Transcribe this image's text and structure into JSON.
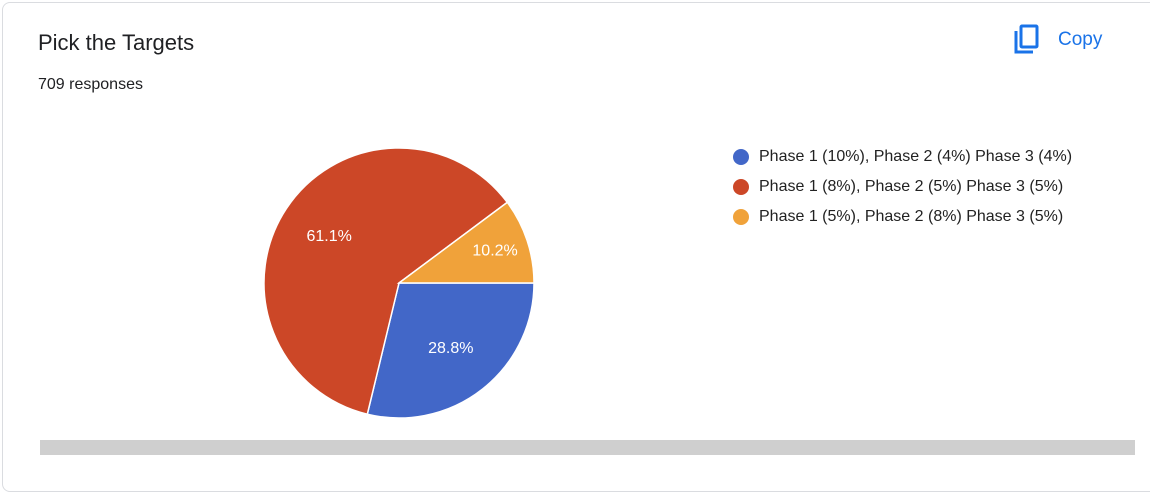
{
  "header": {
    "title": "Pick the Targets",
    "subtitle": "709 responses",
    "action": "Copy"
  },
  "chart_data": {
    "type": "pie",
    "categories": [
      "Phase 1 (10%), Phase 2 (4%) Phase 3 (4%)",
      "Phase 1 (8%), Phase 2 (5%) Phase 3 (5%)",
      "Phase 1 (5%), Phase 2 (8%) Phase 3 (5%)"
    ],
    "values": [
      28.8,
      61.1,
      10.2
    ],
    "value_labels": [
      "28.8%",
      "61.1%",
      "10.2%"
    ],
    "colors": [
      "#4267c8",
      "#cc4727",
      "#f0a23a"
    ],
    "legend": "right"
  }
}
